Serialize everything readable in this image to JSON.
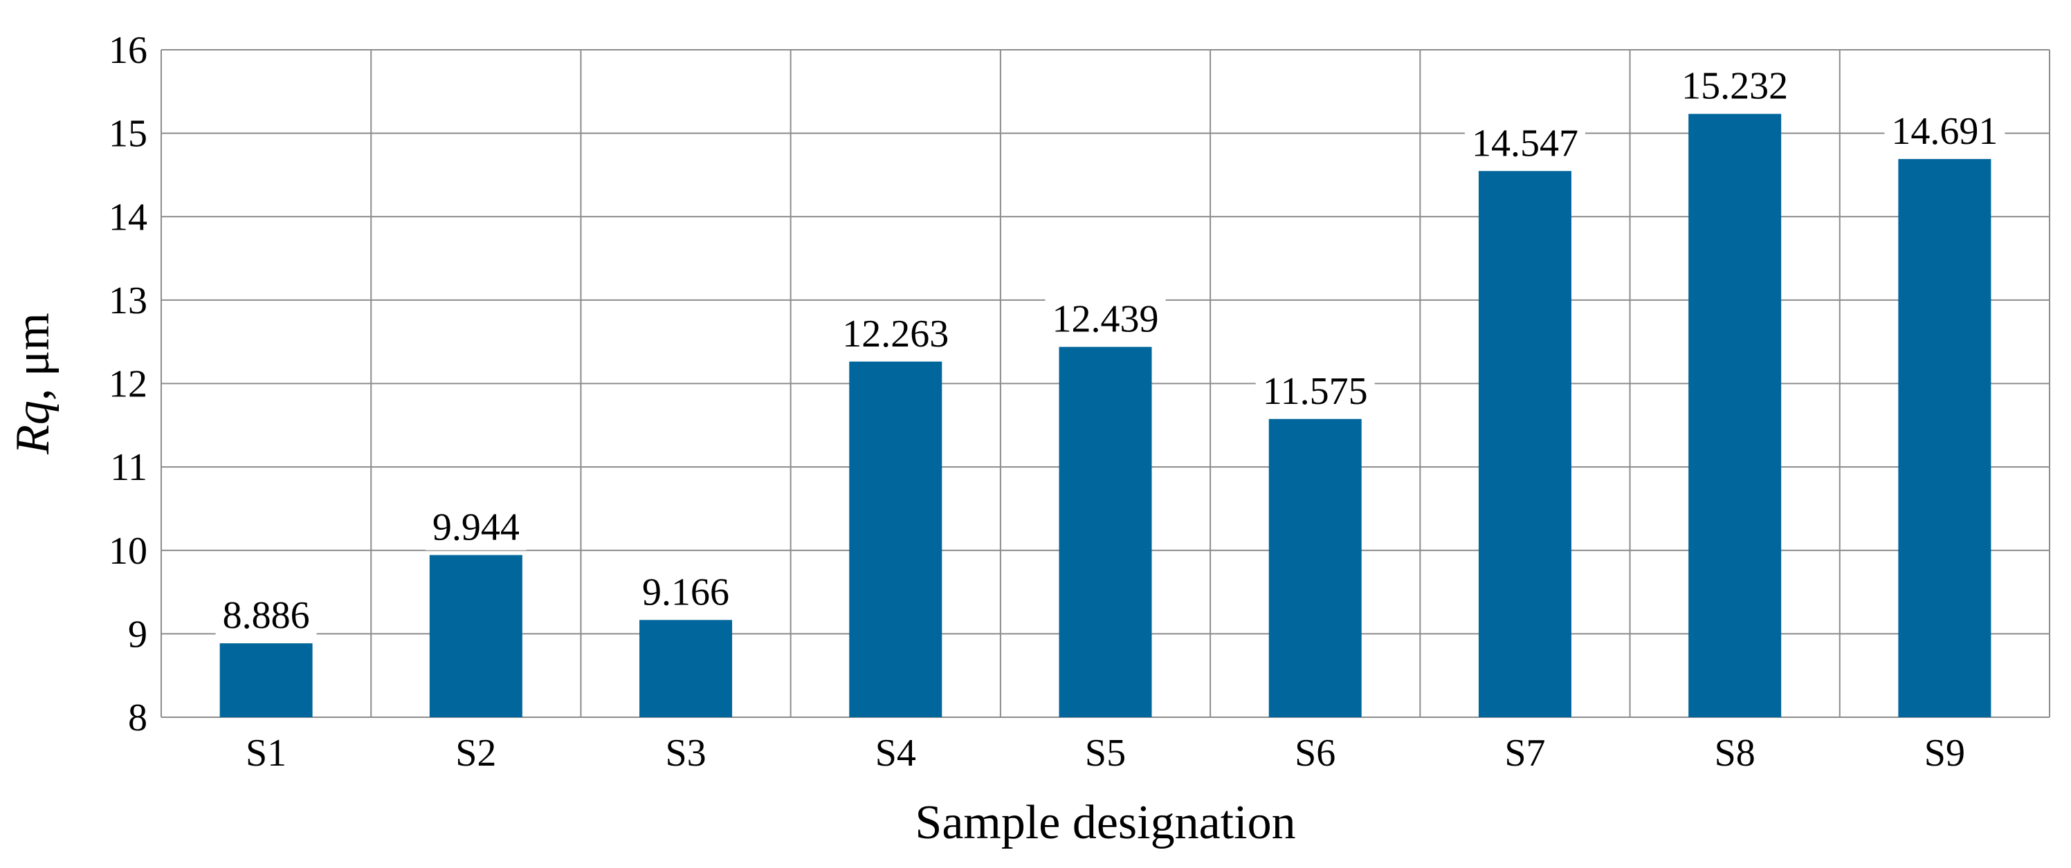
{
  "chart_data": {
    "type": "bar",
    "title": "",
    "xlabel": "Sample designation",
    "ylabel_italic": "Rq",
    "ylabel_suffix": ", μm",
    "categories": [
      "S1",
      "S2",
      "S3",
      "S4",
      "S5",
      "S6",
      "S7",
      "S8",
      "S9"
    ],
    "values": [
      8.886,
      9.944,
      9.166,
      12.263,
      12.439,
      11.575,
      14.547,
      15.232,
      14.691
    ],
    "data_labels": [
      "8.886",
      "9.944",
      "9.166",
      "12.263",
      "12.439",
      "11.575",
      "14.547",
      "15.232",
      "14.691"
    ],
    "ylim": [
      8,
      16
    ],
    "yticks": [
      8,
      9,
      10,
      11,
      12,
      13,
      14,
      15,
      16
    ],
    "grid": true,
    "legend": "none",
    "colors": {
      "bar": "#00669c",
      "grid": "#8c8c8c",
      "plot_background": "#ffffff"
    }
  }
}
